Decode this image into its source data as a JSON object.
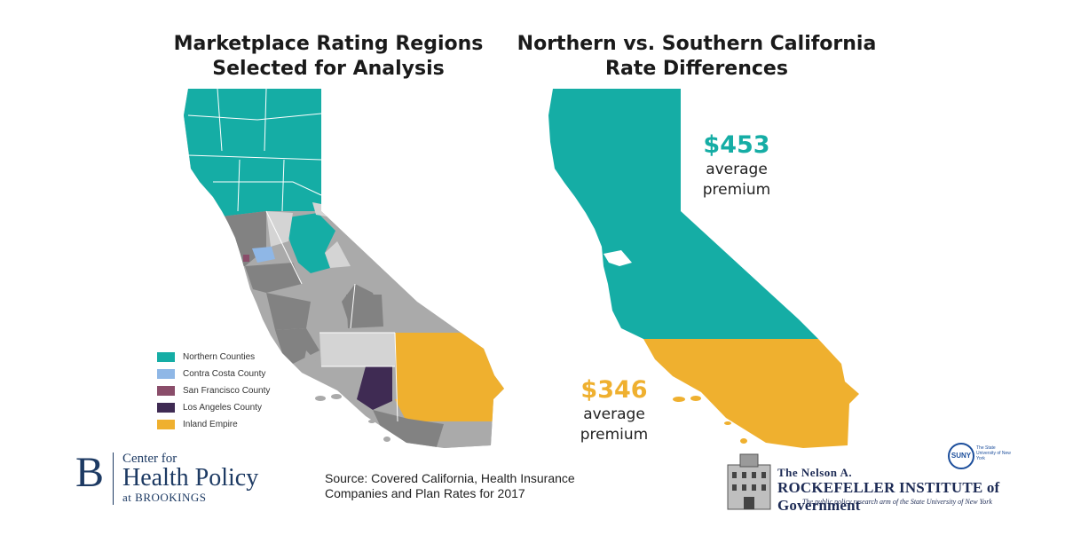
{
  "colors": {
    "teal": "#15ada5",
    "light_blue": "#8fb7e6",
    "sf_mauve": "#8a4d6a",
    "la_purple": "#3f2b53",
    "inland_gold": "#efb02f",
    "gray_light": "#d4d4d4",
    "gray_mid": "#aaaaaa",
    "gray_dark": "#828282",
    "navy": "#1d3a63"
  },
  "left_title": {
    "line1": "Marketplace Rating Regions",
    "line2": "Selected for Analysis"
  },
  "right_title": {
    "line1": "Northern vs. Southern California",
    "line2": "Rate Differences"
  },
  "legend": [
    {
      "label": "Northern Counties",
      "color": "#15ada5"
    },
    {
      "label": "Contra Costa County",
      "color": "#8fb7e6"
    },
    {
      "label": "San Francisco County",
      "color": "#8a4d6a"
    },
    {
      "label": "Los Angeles County",
      "color": "#3f2b53"
    },
    {
      "label": "Inland Empire",
      "color": "#efb02f"
    }
  ],
  "north": {
    "price": "$453",
    "line1": "average",
    "line2": "premium"
  },
  "south": {
    "price": "$346",
    "line1": "average",
    "line2": "premium"
  },
  "brookings": {
    "letter": "B",
    "line1": "Center for",
    "line2": "Health Policy",
    "line3": "at BROOKINGS"
  },
  "source": "Source: Covered California, Health Insurance Companies and Plan Rates for 2017",
  "rockefeller": {
    "line1": "The Nelson A.",
    "line2": "ROCKEFELLER INSTITUTE of Government",
    "line3": "The public policy research arm of the State University of New York",
    "suny": "SUNY",
    "suny_sub": "The State University of New York"
  }
}
